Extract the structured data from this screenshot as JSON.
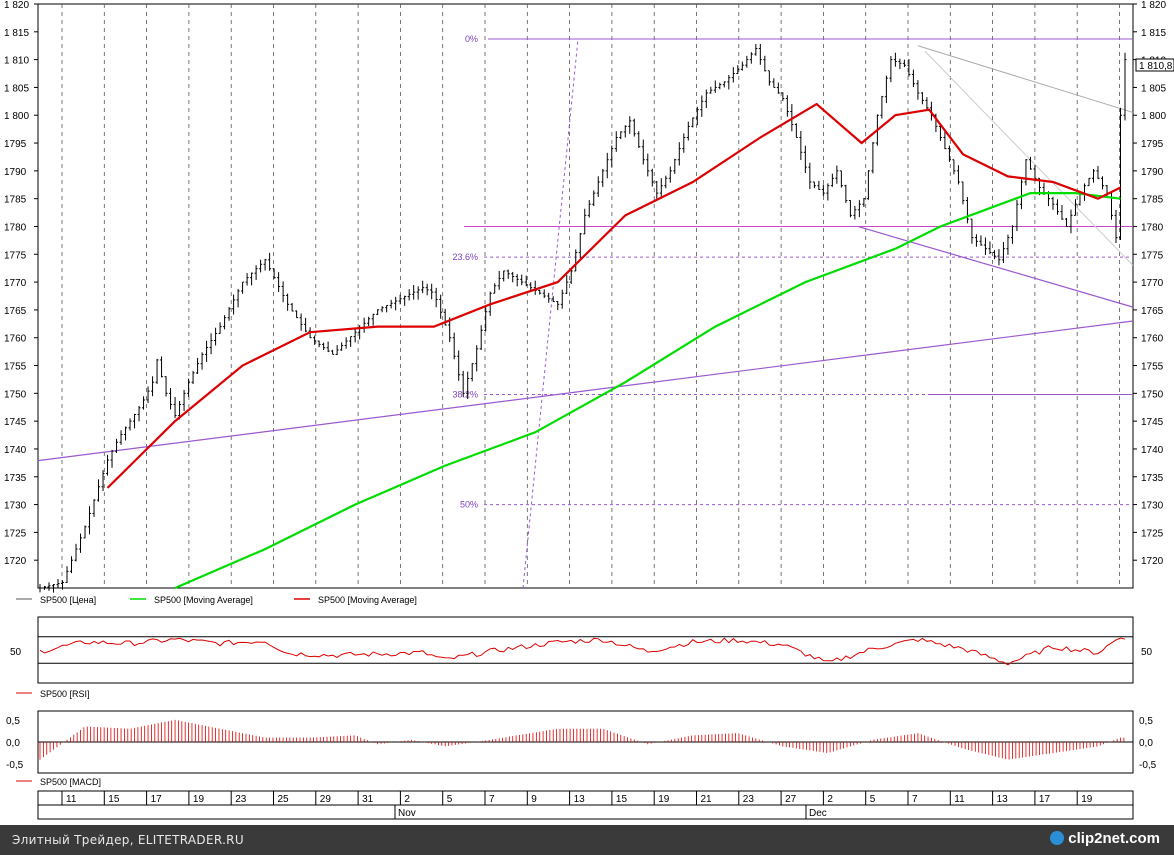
{
  "chart_data": [
    {
      "type": "line",
      "panel": "price",
      "ylim": [
        1715,
        1820
      ],
      "y_ticks": [
        "1 820",
        "1 815",
        "1 810",
        "1 805",
        "1 800",
        "1795",
        "1790",
        "1785",
        "1780",
        "1775",
        "1770",
        "1765",
        "1760",
        "1755",
        "1750",
        "1745",
        "1740",
        "1735",
        "1730",
        "1725",
        "1720"
      ],
      "y_tick_values": [
        1820,
        1815,
        1810,
        1805,
        1800,
        1795,
        1790,
        1785,
        1780,
        1775,
        1770,
        1765,
        1760,
        1755,
        1750,
        1745,
        1740,
        1735,
        1730,
        1725,
        1720
      ],
      "last_price_label": "1 810,8",
      "fib_levels": [
        {
          "label": "0%",
          "value": 1813.7
        },
        {
          "label": "23.6%",
          "value": 1774.5
        },
        {
          "label": "38.2%",
          "value": 1749.8
        },
        {
          "label": "50%",
          "value": 1730
        }
      ],
      "horizontal_levels": [
        1813.7,
        1780,
        1749.8
      ],
      "legend": [
        {
          "name": "SP500 [Цена]",
          "color": "#555555"
        },
        {
          "name": "SP500 [Moving Average]",
          "color": "#00dd00"
        },
        {
          "name": "SP500 [Moving Average]",
          "color": "#dd0000"
        }
      ],
      "series": [
        {
          "name": "SP500 [Цена]",
          "color": "#000000",
          "points": [
            [
              0,
              1715
            ],
            [
              10,
              1716
            ],
            [
              20,
              1726
            ],
            [
              30,
              1738
            ],
            [
              35,
              1742
            ],
            [
              40,
              1745
            ],
            [
              45,
              1748
            ],
            [
              50,
              1752
            ],
            [
              52,
              1756
            ],
            [
              56,
              1750
            ],
            [
              60,
              1746
            ],
            [
              66,
              1752
            ],
            [
              72,
              1757
            ],
            [
              80,
              1762
            ],
            [
              90,
              1770
            ],
            [
              100,
              1774
            ],
            [
              110,
              1766
            ],
            [
              120,
              1760
            ],
            [
              130,
              1757
            ],
            [
              140,
              1761
            ],
            [
              150,
              1765
            ],
            [
              160,
              1767
            ],
            [
              170,
              1769
            ],
            [
              175,
              1768
            ],
            [
              182,
              1760
            ],
            [
              188,
              1750
            ],
            [
              194,
              1758
            ],
            [
              200,
              1768
            ],
            [
              206,
              1772
            ],
            [
              214,
              1770
            ],
            [
              222,
              1768
            ],
            [
              230,
              1766
            ],
            [
              236,
              1772
            ],
            [
              242,
              1782
            ],
            [
              248,
              1788
            ],
            [
              256,
              1796
            ],
            [
              262,
              1799
            ],
            [
              268,
              1792
            ],
            [
              274,
              1786
            ],
            [
              280,
              1790
            ],
            [
              288,
              1798
            ],
            [
              296,
              1804
            ],
            [
              304,
              1806
            ],
            [
              312,
              1809
            ],
            [
              318,
              1812
            ],
            [
              324,
              1806
            ],
            [
              330,
              1803
            ],
            [
              336,
              1796
            ],
            [
              342,
              1788
            ],
            [
              348,
              1786
            ],
            [
              354,
              1790
            ],
            [
              360,
              1782
            ],
            [
              366,
              1785
            ],
            [
              372,
              1800
            ],
            [
              378,
              1810
            ],
            [
              384,
              1809
            ],
            [
              390,
              1804
            ],
            [
              396,
              1800
            ],
            [
              402,
              1794
            ],
            [
              408,
              1788
            ],
            [
              414,
              1778
            ],
            [
              420,
              1776
            ],
            [
              426,
              1774
            ],
            [
              432,
              1780
            ],
            [
              438,
              1792
            ],
            [
              444,
              1787
            ],
            [
              450,
              1784
            ],
            [
              456,
              1780
            ],
            [
              462,
              1786
            ],
            [
              468,
              1790
            ],
            [
              474,
              1786
            ],
            [
              478,
              1778
            ],
            [
              480,
              1800
            ],
            [
              482,
              1810
            ]
          ]
        },
        {
          "name": "SP500 [Moving Average]",
          "color": "#00dd00",
          "points": [
            [
              0,
              1710
            ],
            [
              60,
              1715
            ],
            [
              100,
              1722
            ],
            [
              140,
              1730
            ],
            [
              180,
              1737
            ],
            [
              220,
              1743
            ],
            [
              260,
              1752
            ],
            [
              300,
              1762
            ],
            [
              340,
              1770
            ],
            [
              380,
              1776
            ],
            [
              400,
              1780
            ],
            [
              420,
              1783
            ],
            [
              440,
              1786
            ],
            [
              460,
              1786
            ],
            [
              480,
              1785
            ]
          ]
        },
        {
          "name": "SP500 [Moving Average]",
          "color": "#dd0000",
          "points": [
            [
              0,
              1712
            ],
            [
              30,
              1733
            ],
            [
              60,
              1745
            ],
            [
              90,
              1755
            ],
            [
              120,
              1761
            ],
            [
              150,
              1762
            ],
            [
              175,
              1762
            ],
            [
              200,
              1766
            ],
            [
              230,
              1770
            ],
            [
              260,
              1782
            ],
            [
              290,
              1788
            ],
            [
              320,
              1796
            ],
            [
              345,
              1802
            ],
            [
              365,
              1795
            ],
            [
              380,
              1800
            ],
            [
              395,
              1801
            ],
            [
              410,
              1793
            ],
            [
              430,
              1789
            ],
            [
              450,
              1788
            ],
            [
              470,
              1785
            ],
            [
              480,
              1787
            ]
          ]
        }
      ]
    },
    {
      "type": "line",
      "panel": "rsi",
      "ylim": [
        0,
        100
      ],
      "y_ticks": [
        "50",
        "50"
      ],
      "levels": [
        70,
        30
      ],
      "legend": [
        {
          "name": "SP500 [RSI]",
          "color": "#dd0000"
        }
      ],
      "series": [
        {
          "name": "SP500 [RSI]",
          "color": "#dd0000",
          "points": [
            [
              0,
              48
            ],
            [
              20,
              62
            ],
            [
              40,
              60
            ],
            [
              60,
              66
            ],
            [
              80,
              60
            ],
            [
              100,
              64
            ],
            [
              110,
              45
            ],
            [
              130,
              42
            ],
            [
              150,
              44
            ],
            [
              170,
              46
            ],
            [
              180,
              35
            ],
            [
              200,
              48
            ],
            [
              230,
              62
            ],
            [
              250,
              66
            ],
            [
              270,
              48
            ],
            [
              290,
              62
            ],
            [
              310,
              65
            ],
            [
              330,
              58
            ],
            [
              350,
              30
            ],
            [
              370,
              52
            ],
            [
              390,
              66
            ],
            [
              410,
              52
            ],
            [
              430,
              30
            ],
            [
              450,
              55
            ],
            [
              470,
              46
            ],
            [
              480,
              70
            ]
          ]
        }
      ]
    },
    {
      "type": "bar",
      "panel": "macd",
      "ylim": [
        -0.7,
        0.7
      ],
      "y_ticks": [
        "0,5",
        "0,0",
        "-0,5"
      ],
      "y_tick_values": [
        0.5,
        0,
        -0.5
      ],
      "legend": [
        {
          "name": "SP500 [MACD]",
          "color": "#dd0000"
        }
      ],
      "series": [
        {
          "name": "SP500 [MACD]",
          "color": "#dd0000",
          "points": [
            [
              0,
              -0.4
            ],
            [
              20,
              0.35
            ],
            [
              40,
              0.3
            ],
            [
              60,
              0.5
            ],
            [
              80,
              0.3
            ],
            [
              100,
              0.1
            ],
            [
              120,
              0.1
            ],
            [
              140,
              0.15
            ],
            [
              150,
              -0.05
            ],
            [
              165,
              0.05
            ],
            [
              180,
              -0.1
            ],
            [
              200,
              0.05
            ],
            [
              230,
              0.3
            ],
            [
              250,
              0.3
            ],
            [
              270,
              -0.05
            ],
            [
              290,
              0.15
            ],
            [
              310,
              0.2
            ],
            [
              330,
              -0.1
            ],
            [
              350,
              -0.25
            ],
            [
              370,
              0.05
            ],
            [
              390,
              0.2
            ],
            [
              410,
              -0.15
            ],
            [
              430,
              -0.4
            ],
            [
              450,
              -0.25
            ],
            [
              470,
              -0.1
            ],
            [
              480,
              0.1
            ]
          ]
        }
      ]
    }
  ],
  "x_axis": {
    "day_labels": [
      "11",
      "15",
      "17",
      "19",
      "23",
      "25",
      "29",
      "31",
      "2",
      "5",
      "7",
      "9",
      "13",
      "15",
      "19",
      "21",
      "23",
      "27",
      "2",
      "5",
      "7",
      "11",
      "13",
      "17",
      "19"
    ],
    "month_labels": [
      "Nov",
      "Dec"
    ]
  },
  "footer": {
    "left_text": "Элитный Трейдер, ELITETRADER.RU",
    "logo_text": "clip2net.com"
  }
}
